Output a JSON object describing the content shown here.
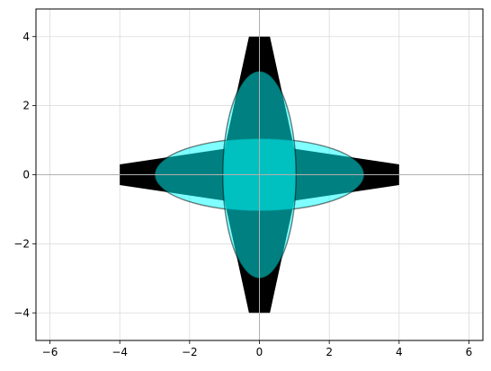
{
  "chart_data": {
    "type": "area",
    "title": "",
    "xlabel": "",
    "ylabel": "",
    "xlim": [
      -6.4,
      6.4
    ],
    "ylim": [
      -4.8,
      4.8
    ],
    "grid": true,
    "axis_lines_through_origin": true,
    "x_ticks": [
      -6,
      -4,
      -2,
      0,
      2,
      4,
      6
    ],
    "y_ticks": [
      -4,
      -2,
      0,
      2,
      4
    ],
    "x_tick_labels": [
      "−6",
      "−4",
      "−2",
      "0",
      "2",
      "4",
      "6"
    ],
    "y_tick_labels": [
      "−4",
      "−2",
      "0",
      "2",
      "4"
    ],
    "shapes": [
      {
        "kind": "star-polygon",
        "fill": "#000000",
        "points": [
          [
            -4,
            0.3
          ],
          [
            -1,
            0.75
          ],
          [
            -0.3,
            4
          ],
          [
            0.3,
            4
          ],
          [
            1,
            0.75
          ],
          [
            4,
            0.3
          ],
          [
            4,
            -0.3
          ],
          [
            1,
            -0.75
          ],
          [
            0.3,
            -4
          ],
          [
            -0.3,
            -4
          ],
          [
            -1,
            -0.75
          ],
          [
            -4,
            -0.3
          ]
        ]
      },
      {
        "kind": "ellipse",
        "center": [
          0,
          0
        ],
        "rx": 3,
        "ry": 1.05,
        "fill": "#00ffff",
        "alpha": 0.5,
        "edge": "#000000"
      },
      {
        "kind": "ellipse",
        "center": [
          0,
          0
        ],
        "rx": 1.05,
        "ry": 3,
        "fill": "#00ffff",
        "alpha": 0.5,
        "edge": "#000000"
      }
    ],
    "colors": {
      "grid": "#d9d9d9",
      "axis_line": "#b0b0b0",
      "frame": "#000000"
    }
  }
}
